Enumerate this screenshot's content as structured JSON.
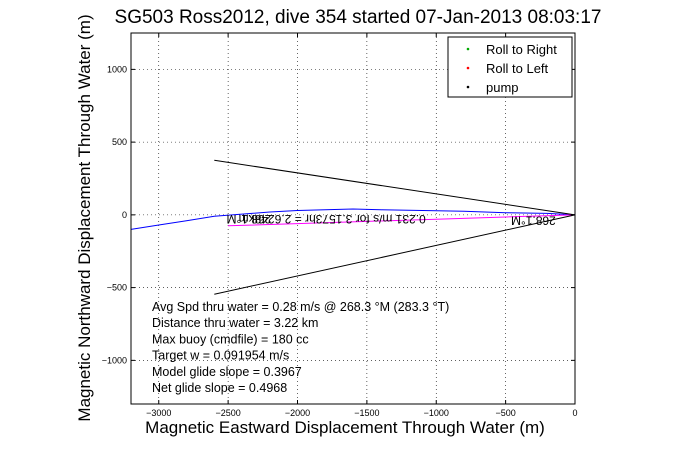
{
  "chart_data": {
    "type": "line",
    "title": "SG503 Ross2012, dive 354 started 07-Jan-2013 08:03:17",
    "xlabel": "Magnetic Eastward Displacement Through Water (m)",
    "ylabel": "Magnetic Northward Displacement Through Water (m)",
    "xlim": [
      -3200,
      0
    ],
    "ylim": [
      -1300,
      1250
    ],
    "x_ticks": [
      -3000,
      -2500,
      -2000,
      -1500,
      -1000,
      -500,
      0
    ],
    "y_ticks": [
      1000,
      500,
      0,
      -500,
      -1000
    ],
    "grid": true,
    "legend_position": "top-right",
    "legend": [
      {
        "label": "Roll to Right",
        "color": "#00aa00",
        "marker": "."
      },
      {
        "label": "Roll to Left",
        "color": "#ff0000",
        "marker": "."
      },
      {
        "label": "pump",
        "color": "#000000",
        "marker": "."
      }
    ],
    "series": [
      {
        "color": "#0000ff",
        "x": [
          0,
          -200,
          -500,
          -800,
          -1100,
          -1400,
          -1600,
          -1800,
          -2000,
          -2200,
          -2400,
          -2600,
          -2800,
          -3000,
          -3200
        ],
        "y": [
          0,
          10,
          15,
          25,
          30,
          35,
          40,
          35,
          30,
          20,
          5,
          -10,
          -40,
          -70,
          -100
        ]
      },
      {
        "color": "#ff00ff",
        "x": [
          0,
          -500,
          -1000,
          -1500,
          -2000,
          -2500
        ],
        "y": [
          0,
          -15,
          -30,
          -45,
          -60,
          -75
        ]
      },
      {
        "color": "#000000",
        "x": [
          0,
          -2600
        ],
        "y": [
          0,
          375
        ]
      },
      {
        "color": "#000000",
        "x": [
          0,
          -2600
        ],
        "y": [
          0,
          -545
        ]
      }
    ],
    "annotations": [
      "Avg Spd thru water = 0.28 m/s @ 268.3 °M (283.3 °T)",
      "Distance thru water = 3.22 km",
      "Max buoy (cmdfile) = 180 cc",
      "Target w = 0.091954 m/s",
      "Model glide slope = 0.3967",
      "Net glide slope = 0.4968"
    ],
    "overlay_labels": [
      "268.1°M",
      "0.231 m/s for 3.1573hr = 2.6248km",
      "268.1°M"
    ]
  }
}
